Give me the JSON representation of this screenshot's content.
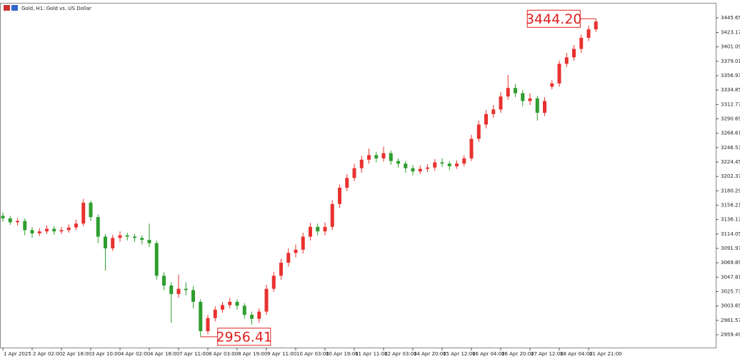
{
  "chart_data": {
    "type": "candlestick",
    "title": "Gold, H1:  Gold vs. US Dollar",
    "categories": [
      "1 Apr 2025",
      null,
      null,
      null,
      "2 Apr 02:00",
      null,
      null,
      null,
      "2 Apr 18:00",
      null,
      null,
      null,
      "3 Apr 10:00",
      null,
      null,
      null,
      "4 Apr 02:00",
      null,
      null,
      null,
      "4 Apr 18:00",
      null,
      null,
      null,
      "7 Apr 11:00",
      null,
      null,
      null,
      "8 Apr 03:00",
      null,
      null,
      null,
      "8 Apr 19:00",
      null,
      null,
      null,
      "9 Apr 11:00",
      null,
      null,
      null,
      "10 Apr 03:00",
      null,
      null,
      null,
      "10 Apr 19:00",
      null,
      null,
      null,
      "11 Apr 11:00",
      null,
      null,
      null,
      "12 Apr 03:00",
      null,
      null,
      null,
      "14 Apr 20:00",
      null,
      null,
      null,
      "15 Apr 12:00",
      null,
      null,
      null,
      "16 Apr 04:00",
      null,
      null,
      null,
      "16 Apr 20:00",
      null,
      null,
      null,
      "17 Apr 12:00",
      null,
      null,
      null,
      "18 Apr 04:00",
      null,
      null,
      null,
      "21 Apr 21:00",
      null
    ],
    "open": [
      3142,
      3138,
      3132,
      3134,
      3120,
      3115,
      3118,
      3122,
      3118,
      3120,
      3124,
      3130,
      3162,
      3140,
      3110,
      3092,
      3108,
      3112,
      3110,
      3108,
      3105,
      3100,
      3050,
      3035,
      3022,
      3030,
      3028,
      3010,
      2965,
      2985,
      2998,
      3005,
      3010,
      3004,
      2990,
      2984,
      2995,
      3030,
      3050,
      3070,
      3085,
      3090,
      3110,
      3125,
      3118,
      3125,
      3160,
      3185,
      3200,
      3215,
      3228,
      3235,
      3230,
      3238,
      3226,
      3222,
      3215,
      3210,
      3214,
      3216,
      3224,
      3222,
      3218,
      3222,
      3230,
      3260,
      3282,
      3298,
      3305,
      3325,
      3338,
      3330,
      3318,
      3322,
      3300,
      3340,
      3345,
      3375,
      3385,
      3398,
      3415,
      3428
    ],
    "high": [
      3147,
      3142,
      3138,
      3138,
      3125,
      3123,
      3127,
      3126,
      3125,
      3129,
      3136,
      3168,
      3165,
      3144,
      3114,
      3113,
      3118,
      3116,
      3114,
      3112,
      3130,
      3104,
      3055,
      3040,
      3052,
      3040,
      3034,
      3014,
      2990,
      3003,
      3010,
      3016,
      3014,
      3008,
      2995,
      3000,
      3036,
      3056,
      3076,
      3092,
      3098,
      3116,
      3131,
      3130,
      3132,
      3166,
      3190,
      3206,
      3222,
      3234,
      3245,
      3240,
      3248,
      3242,
      3230,
      3226,
      3220,
      3219,
      3221,
      3229,
      3230,
      3226,
      3227,
      3235,
      3266,
      3288,
      3304,
      3312,
      3332,
      3358,
      3344,
      3335,
      3330,
      3326,
      3324,
      3350,
      3380,
      3392,
      3404,
      3420,
      3434,
      3444.2
    ],
    "low": [
      3133,
      3128,
      3127,
      3112,
      3108,
      3111,
      3114,
      3113,
      3114,
      3116,
      3120,
      3126,
      3134,
      3100,
      3058,
      3088,
      3102,
      3104,
      3102,
      3098,
      3094,
      3044,
      3028,
      2978,
      3016,
      3020,
      3000,
      2956.41,
      2960,
      2980,
      2993,
      3000,
      2998,
      2984,
      2975,
      2978,
      2990,
      3025,
      3044,
      3064,
      3078,
      3084,
      3104,
      3112,
      3112,
      3120,
      3154,
      3180,
      3195,
      3208,
      3222,
      3224,
      3225,
      3220,
      3216,
      3208,
      3204,
      3206,
      3209,
      3211,
      3217,
      3212,
      3214,
      3218,
      3226,
      3255,
      3276,
      3292,
      3300,
      3320,
      3324,
      3310,
      3312,
      3288,
      3295,
      3336,
      3340,
      3370,
      3380,
      3392,
      3410,
      3424
    ],
    "close": [
      3138,
      3132,
      3134,
      3120,
      3115,
      3118,
      3122,
      3118,
      3120,
      3124,
      3130,
      3162,
      3140,
      3110,
      3092,
      3108,
      3112,
      3110,
      3108,
      3105,
      3100,
      3050,
      3035,
      3022,
      3030,
      3028,
      3010,
      2965,
      2985,
      2998,
      3005,
      3010,
      3004,
      2990,
      2984,
      2995,
      3030,
      3050,
      3070,
      3085,
      3090,
      3110,
      3125,
      3118,
      3125,
      3160,
      3185,
      3200,
      3215,
      3228,
      3235,
      3230,
      3238,
      3226,
      3222,
      3215,
      3210,
      3214,
      3216,
      3224,
      3222,
      3218,
      3222,
      3230,
      3260,
      3282,
      3298,
      3305,
      3325,
      3338,
      3330,
      3318,
      3322,
      3300,
      3318,
      3345,
      3375,
      3385,
      3398,
      3415,
      3428,
      3440
    ],
    "up_color": "#e8322f",
    "down_color": "#2e9e2e",
    "ylim": [
      2939.8,
      3467.5
    ],
    "yticks": [
      2959.49,
      2981.57,
      3003.65,
      3025.73,
      3047.81,
      3069.89,
      3091.97,
      3114.05,
      3136.13,
      3158.21,
      3180.29,
      3202.37,
      3224.45,
      3246.53,
      3268.61,
      3290.69,
      3312.77,
      3334.85,
      3356.93,
      3379.01,
      3401.09,
      3423.17,
      3445.65
    ],
    "annotations": [
      {
        "value": 3444.2,
        "label": "3444.20"
      },
      {
        "value": 2956.41,
        "label": "2956.41"
      }
    ]
  }
}
